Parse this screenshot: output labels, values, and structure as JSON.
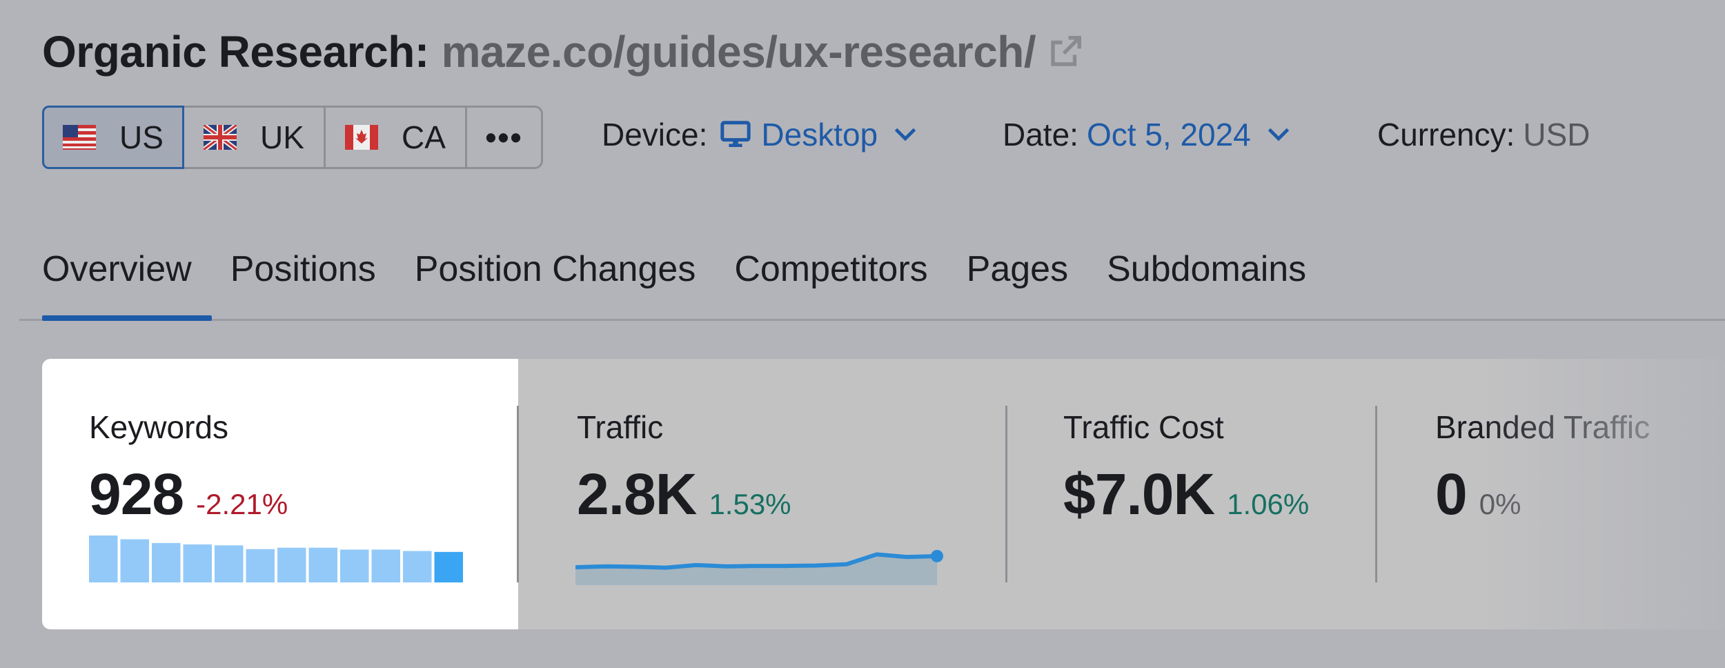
{
  "header": {
    "title": "Organic Research:",
    "domain": "maze.co/guides/ux-research/",
    "external_link_icon": "external-link-icon"
  },
  "databases": [
    {
      "code": "US",
      "flag_icon": "us-flag-icon",
      "active": true
    },
    {
      "code": "UK",
      "flag_icon": "uk-flag-icon",
      "active": false
    },
    {
      "code": "CA",
      "flag_icon": "ca-flag-icon",
      "active": false
    }
  ],
  "more_label": "•••",
  "filters": {
    "device_label": "Device:",
    "device_value": "Desktop",
    "date_label": "Date:",
    "date_value": "Oct 5, 2024",
    "currency_label": "Currency:",
    "currency_value": "USD"
  },
  "tabs": [
    "Overview",
    "Positions",
    "Position Changes",
    "Competitors",
    "Pages",
    "Subdomains"
  ],
  "active_tab": "Overview",
  "metrics": {
    "keywords": {
      "name": "Keywords",
      "value": "928",
      "change": "-2.21%",
      "history": [
        1.0,
        0.92,
        0.84,
        0.81,
        0.79,
        0.71,
        0.74,
        0.74,
        0.7,
        0.7,
        0.67,
        0.65
      ]
    },
    "traffic": {
      "name": "Traffic",
      "value": "2.8K",
      "change": "1.53%",
      "history": [
        0.42,
        0.44,
        0.43,
        0.41,
        0.47,
        0.44,
        0.45,
        0.45,
        0.46,
        0.49,
        0.72,
        0.66,
        0.68
      ]
    },
    "traffic_cost": {
      "name": "Traffic Cost",
      "value": "$7.0K",
      "change": "1.06%"
    },
    "branded_traffic": {
      "name": "Branded Traffic",
      "value": "0",
      "change": "0%"
    }
  },
  "colors": {
    "accent": "#1e5aa8",
    "negative": "#b0192b",
    "positive": "#167061",
    "bar": "#93c9f8",
    "bar_last": "#3aa6f3",
    "spark_line": "#2b8bd6",
    "spark_fill": "#a4b5c0"
  }
}
